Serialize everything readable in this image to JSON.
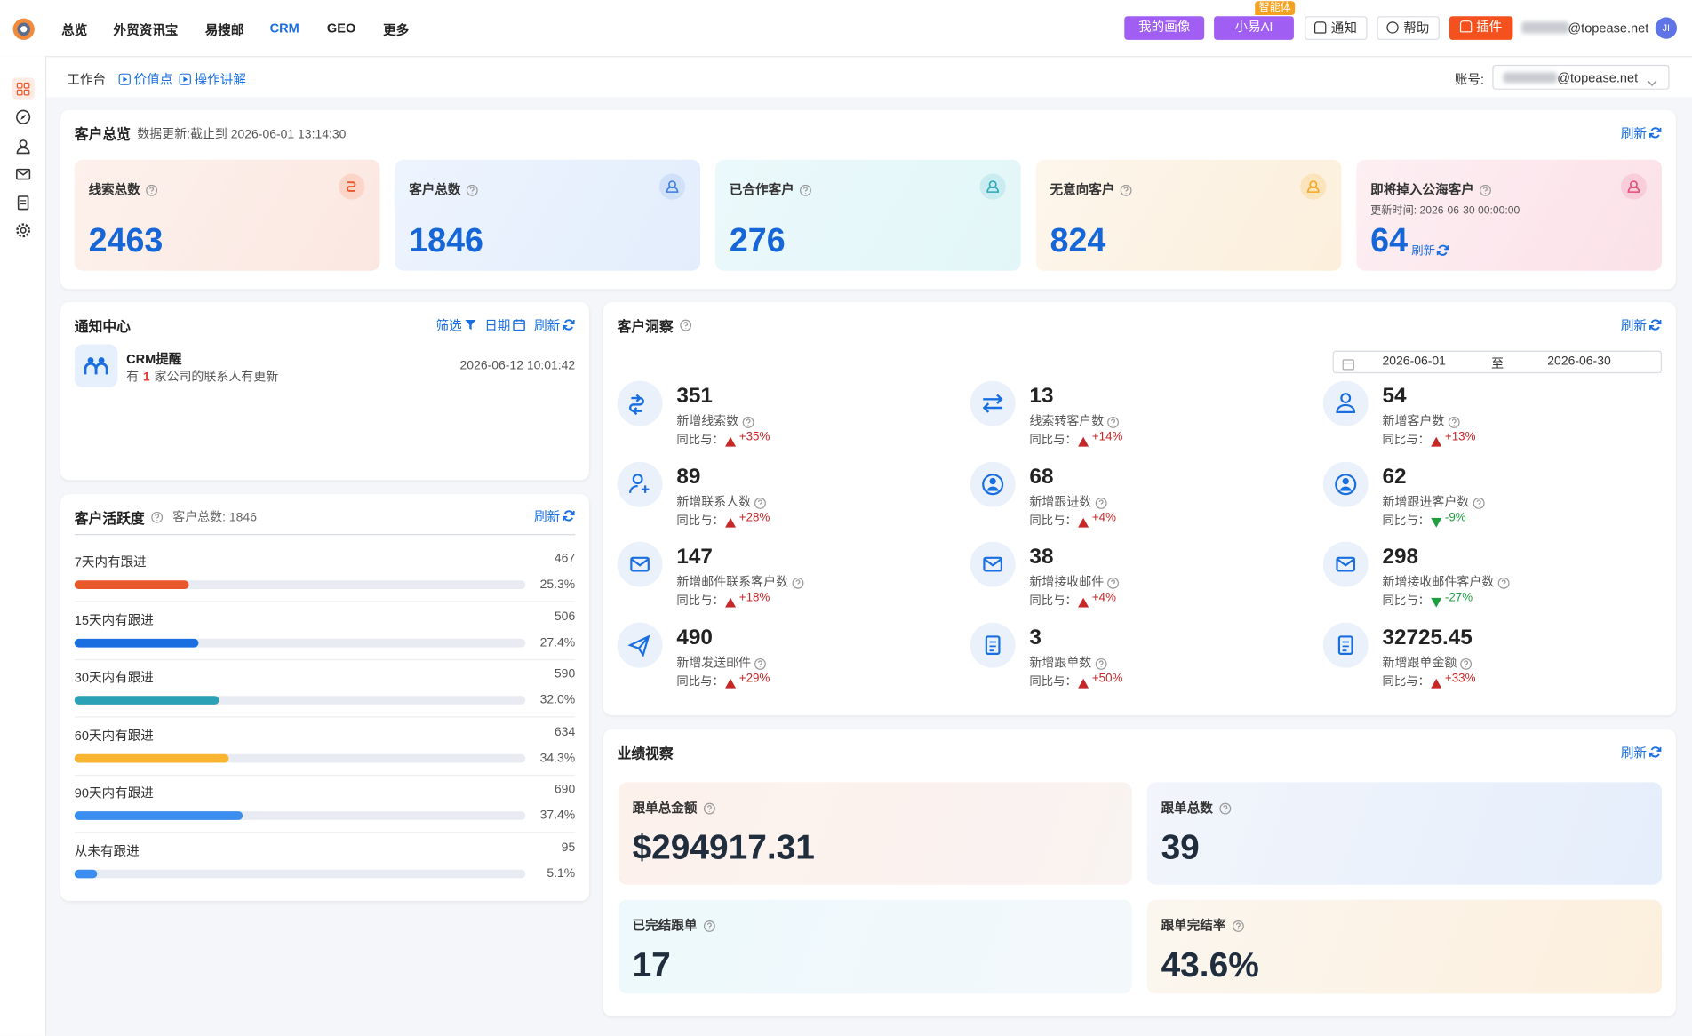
{
  "top_nav": {
    "items": [
      "总览",
      "外贸资讯宝",
      "易搜邮",
      "CRM",
      "GEO",
      "更多"
    ],
    "active": 3,
    "buttons": [
      "我的画像",
      "小易AI",
      "通知",
      "帮助",
      "插件"
    ],
    "badge": "智能体",
    "email": "@topease.net",
    "avatar": "JI"
  },
  "sub_nav": {
    "items": [
      "工作台",
      "价值点",
      "操作讲解"
    ],
    "account_label": "账号:",
    "account_value": "@topease.net"
  },
  "overview": {
    "title": "客户总览",
    "subtitle": "数据更新:截止到 2026-06-01 13:14:30",
    "refresh": "刷新",
    "cards": [
      {
        "label": "线索总数",
        "value": "2463"
      },
      {
        "label": "客户总数",
        "value": "1846"
      },
      {
        "label": "已合作客户",
        "value": "276"
      },
      {
        "label": "无意向客户",
        "value": "824"
      },
      {
        "label": "即将掉入公海客户",
        "note": "更新时间: 2026-06-30 00:00:00",
        "value": "64",
        "refresh": "刷新"
      }
    ]
  },
  "notifications": {
    "title": "通知中心",
    "actions": [
      "筛选",
      "日期",
      "刷新"
    ],
    "items": [
      {
        "title": "CRM提醒",
        "text": [
          "有",
          "1",
          "家公司的联系人有更新"
        ],
        "time": "2026-06-12 10:01:42"
      }
    ]
  },
  "activity": {
    "title": "客户活跃度",
    "total": "客户总数: 1846",
    "refresh": "刷新",
    "rows": [
      {
        "label": "7天内有跟进",
        "count": 467,
        "pct": {
          "value": 25.3,
          "label": "25.3%"
        }
      },
      {
        "label": "15天内有跟进",
        "count": 506,
        "pct": {
          "value": 27.4,
          "label": "27.4%"
        }
      },
      {
        "label": "30天内有跟进",
        "count": 590,
        "pct": {
          "value": 32.0,
          "label": "32.0%"
        }
      },
      {
        "label": "60天内有跟进",
        "count": 634,
        "pct": {
          "value": 34.3,
          "label": "34.3%"
        }
      },
      {
        "label": "90天内有跟进",
        "count": 690,
        "pct": {
          "value": 37.4,
          "label": "37.4%"
        }
      },
      {
        "label": "从未有跟进",
        "count": 95,
        "pct": {
          "value": 5.1,
          "label": "5.1%"
        }
      }
    ]
  },
  "insights": {
    "title": "客户洞察",
    "refresh": "刷新",
    "date_from": "2026-06-01",
    "date_sep": "至",
    "date_to": "2026-06-30",
    "compare_label": "同比与：",
    "items": [
      {
        "value": "351",
        "label": "新增线索数",
        "change": "+35%",
        "trend": "up"
      },
      {
        "value": "13",
        "label": "线索转客户数",
        "change": "+14%",
        "trend": "up"
      },
      {
        "value": "54",
        "label": "新增客户数",
        "change": "+13%",
        "trend": "up"
      },
      {
        "value": "89",
        "label": "新增联系人数",
        "change": "+28%",
        "trend": "up"
      },
      {
        "value": "68",
        "label": "新增跟进数",
        "change": "+4%",
        "trend": "up"
      },
      {
        "value": "62",
        "label": "新增跟进客户数",
        "change": "-9%",
        "trend": "down"
      },
      {
        "value": "147",
        "label": "新增邮件联系客户数",
        "change": "+18%",
        "trend": "up"
      },
      {
        "value": "38",
        "label": "新增接收邮件",
        "change": "+4%",
        "trend": "up"
      },
      {
        "value": "298",
        "label": "新增接收邮件客户数",
        "change": "-27%",
        "trend": "down"
      },
      {
        "value": "490",
        "label": "新增发送邮件",
        "change": "+29%",
        "trend": "up"
      },
      {
        "value": "3",
        "label": "新增跟单数",
        "change": "+50%",
        "trend": "up"
      },
      {
        "value": "32725.45",
        "label": "新增跟单金额",
        "change": "+33%",
        "trend": "up"
      }
    ]
  },
  "performance": {
    "title": "业绩视察",
    "refresh": "刷新",
    "cards": [
      {
        "label": "跟单总金额",
        "value": "$294917.31"
      },
      {
        "label": "跟单总数",
        "value": "39"
      },
      {
        "label": "已完结跟单",
        "value": "17"
      },
      {
        "label": "跟单完结率",
        "value": "43.6%"
      }
    ]
  }
}
